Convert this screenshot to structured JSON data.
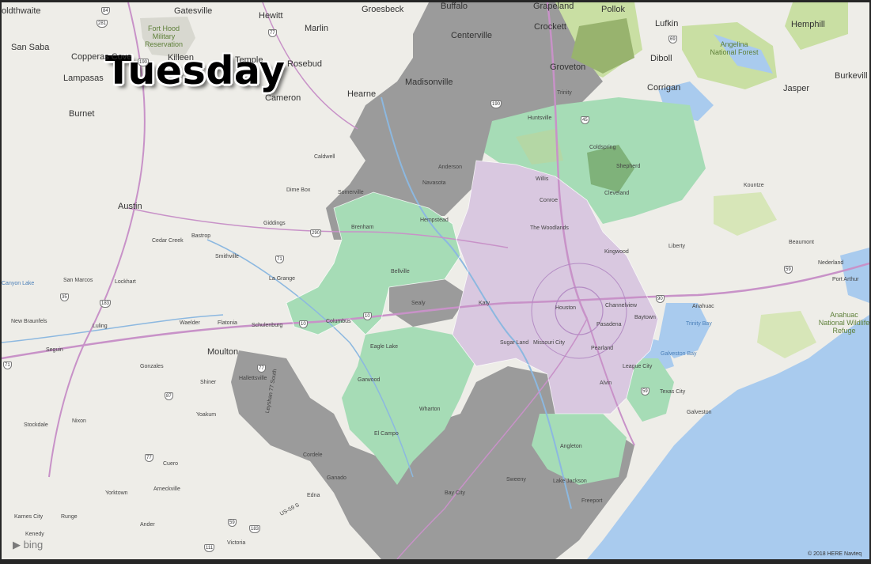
{
  "title": "Tuesday",
  "provider": "bing",
  "copyright": "© 2018 HERE  Navteq",
  "colors": {
    "land": "#eeede8",
    "water": "#a9cbee",
    "gray_zone": "#9b9b9b",
    "green_zone": "#a6dcb6",
    "purple_zone": "#d9c8e0",
    "park": "#c9dfa3"
  },
  "cities": [
    "oldthwaite",
    "Gatesville",
    "Hewitt",
    "Groesbeck",
    "Buffalo",
    "Grapeland",
    "Pollok",
    "Lufkin",
    "Hemphill",
    "San Saba",
    "Copperas Cove",
    "Killeen",
    "Temple",
    "Marlin",
    "Centerville",
    "Crockett",
    "Diboll",
    "Lampasas",
    "Rosebud",
    "Madisonville",
    "Groveton",
    "Corrigan",
    "Jasper",
    "Burkevill",
    "Cameron",
    "Hearne",
    "Trinity",
    "Burnet",
    "Huntsville",
    "Caldwell",
    "Dime Box",
    "Somerville",
    "Navasota",
    "Anderson",
    "Willis",
    "Coldspring",
    "Shepherd",
    "Cleveland",
    "Conroe",
    "Kountze",
    "Austin",
    "Giddings",
    "Brenham",
    "Hempstead",
    "The Woodlands",
    "Kingwood",
    "Liberty",
    "Beaumont",
    "Cedar Creek",
    "Bastrop",
    "Smithville",
    "Bellville",
    "Nederland",
    "San Marcos",
    "Lockhart",
    "La Grange",
    "Port Arthur",
    "Sealy",
    "Katy",
    "Houston",
    "Channelview",
    "Anahuac",
    "New Braunfels",
    "Luling",
    "Waelder",
    "Flatonia",
    "Schulenburg",
    "Columbus",
    "Baytown",
    "Pasadena",
    "Seguin",
    "Moulton",
    "Eagle Lake",
    "Sugar Land",
    "Missouri City",
    "Pearland",
    "League City",
    "Gonzales",
    "Shiner",
    "Hallettsville",
    "Garwood",
    "Alvin",
    "Texas City",
    "Yoakum",
    "Wharton",
    "Galveston",
    "Stockdale",
    "Nixon",
    "El Campo",
    "Angleton",
    "Cuero",
    "Cordele",
    "Ganado",
    "Sweeny",
    "Lake Jackson",
    "Yorktown",
    "Arneckville",
    "Bay City",
    "Freeport",
    "Karnes City",
    "Runge",
    "Edna",
    "Kenedy",
    "Ander",
    "Victoria"
  ],
  "water_labels": [
    "Trinity Bay",
    "Galveston Bay",
    "Canyon Lake"
  ],
  "park_labels": [
    "Fort Hood Military Reservation",
    "Angelina National Forest",
    "Anahuac National Wildlife Refuge"
  ],
  "highway_shields": [
    "84",
    "281",
    "77",
    "190",
    "69",
    "190",
    "71",
    "290",
    "10",
    "10",
    "59",
    "35",
    "183",
    "77",
    "87",
    "77",
    "59",
    "183",
    "111",
    "71",
    "45",
    "59",
    "90"
  ],
  "highway_labels": [
    "US-59 S",
    "Leyshan 77 South"
  ]
}
